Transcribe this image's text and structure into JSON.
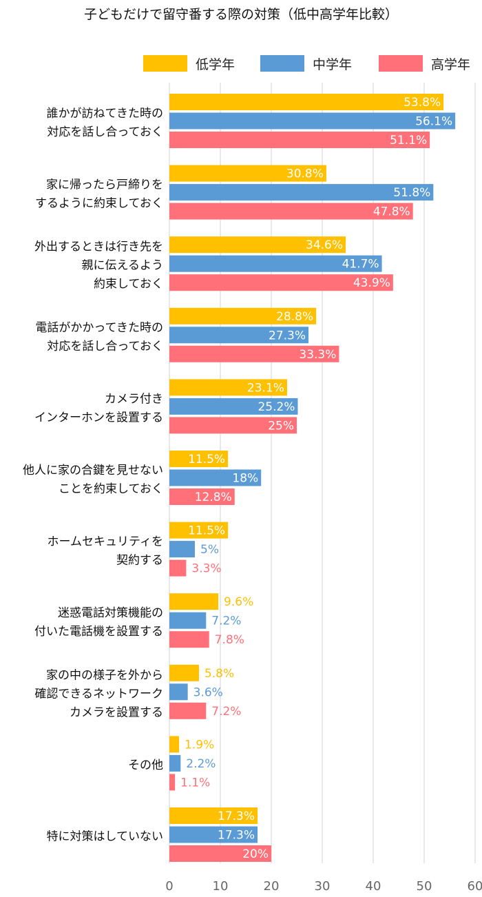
{
  "chart_data": {
    "type": "bar",
    "orientation": "horizontal",
    "title": "子どもだけで留守番する際の対策（低中高学年比較）",
    "xlim": [
      0,
      60
    ],
    "xticks": [
      0,
      10,
      20,
      30,
      40,
      50,
      60
    ],
    "grid": true,
    "legend_position": "top-right",
    "categories": [
      [
        "誰かが訪ねてきた時の",
        "対応を話し合っておく"
      ],
      [
        "家に帰ったら戸締りを",
        "するように約束しておく"
      ],
      [
        "外出するときは行き先を",
        "親に伝えるよう",
        "約束しておく"
      ],
      [
        "電話がかかってきた時の",
        "対応を話し合っておく"
      ],
      [
        "カメラ付き",
        "インターホンを設置する"
      ],
      [
        "他人に家の合鍵を見せない",
        "ことを約束しておく"
      ],
      [
        "ホームセキュリティを",
        "契約する"
      ],
      [
        "迷惑電話対策機能の",
        "付いた電話機を設置する"
      ],
      [
        "家の中の様子を外から",
        "確認できるネットワーク",
        "カメラを設置する"
      ],
      [
        "その他"
      ],
      [
        "特に対策はしていない"
      ]
    ],
    "series": [
      {
        "name": "低学年",
        "color": "#FFC000",
        "values": [
          53.8,
          30.8,
          34.6,
          28.8,
          23.1,
          11.5,
          11.5,
          9.6,
          5.8,
          1.9,
          17.3
        ],
        "labels": [
          "53.8%",
          "30.8%",
          "34.6%",
          "28.8%",
          "23.1%",
          "11.5%",
          "11.5%",
          "9.6%",
          "5.8%",
          "1.9%",
          "17.3%"
        ]
      },
      {
        "name": "中学年",
        "color": "#5B9BD5",
        "values": [
          56.1,
          51.8,
          41.7,
          27.3,
          25.2,
          18,
          5,
          7.2,
          3.6,
          2.2,
          17.3
        ],
        "labels": [
          "56.1%",
          "51.8%",
          "41.7%",
          "27.3%",
          "25.2%",
          "18%",
          "5%",
          "7.2%",
          "3.6%",
          "2.2%",
          "17.3%"
        ]
      },
      {
        "name": "高学年",
        "color": "#FF7079",
        "values": [
          51.1,
          47.8,
          43.9,
          33.3,
          25,
          12.8,
          3.3,
          7.8,
          7.2,
          1.1,
          20
        ],
        "labels": [
          "51.1%",
          "47.8%",
          "43.9%",
          "33.3%",
          "25%",
          "12.8%",
          "3.3%",
          "7.8%",
          "7.2%",
          "1.1%",
          "20%"
        ]
      }
    ]
  }
}
